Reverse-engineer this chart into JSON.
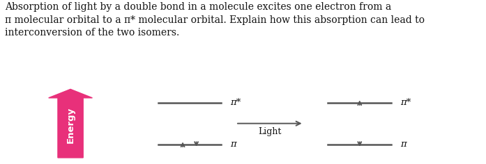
{
  "text_paragraph": "Absorption of light by a double bond in a molecule excites one electron from a\nπ molecular orbital to a π* molecular orbital. Explain how this absorption can lead to\ninterconversion of the two isomers.",
  "background_color": "#ffffff",
  "energy_arrow_color": "#e8307a",
  "energy_label": "Energy",
  "energy_label_color": "#ffffff",
  "light_label": "Light",
  "left_pi_star_label": "π*",
  "left_pi_label": "π",
  "right_pi_star_label": "π*",
  "right_pi_label": "π",
  "line_color": "#555555",
  "text_color": "#111111",
  "arrow_color": "#555555",
  "para_fontsize": 10.0,
  "label_fontsize": 9.5,
  "energy_fontsize": 9.5,
  "light_fontsize": 9.0
}
